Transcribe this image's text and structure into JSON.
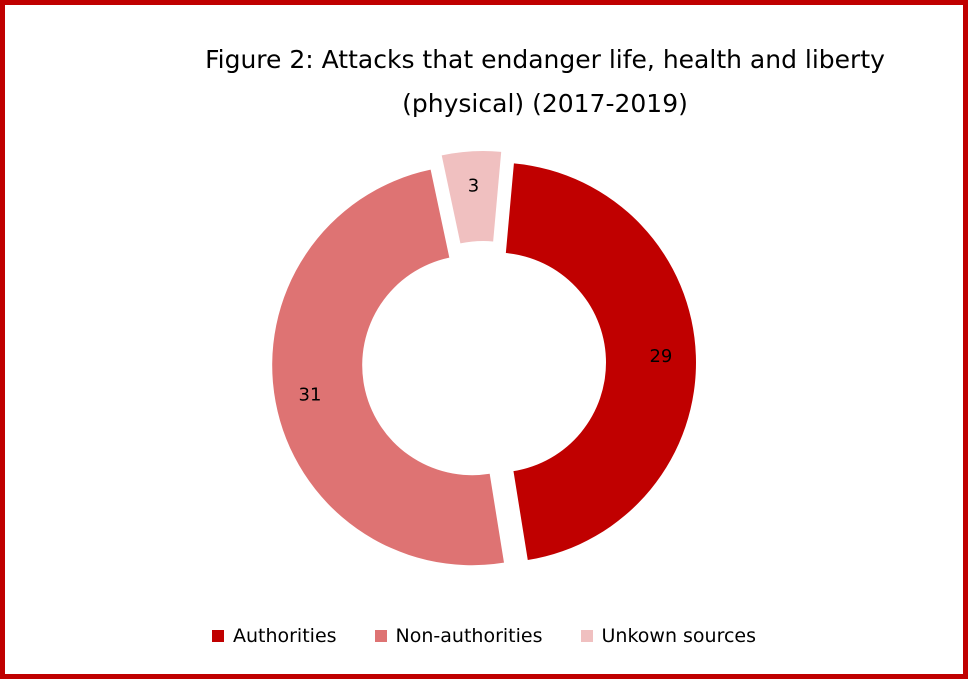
{
  "chart_data": {
    "type": "pie",
    "variant": "donut",
    "title_lines": [
      "Figure 2: Attacks that endanger life, health and liberty",
      "(physical) (2017-2019)"
    ],
    "categories": [
      "Authorities",
      "Non-authorities",
      "Unkown sources"
    ],
    "values": [
      29,
      31,
      3
    ],
    "colors": [
      "#c00000",
      "#de7373",
      "#f0c0c0"
    ],
    "data_labels": [
      "29",
      "31",
      "3"
    ],
    "legend_position": "bottom"
  },
  "frame_color": "#c00000"
}
